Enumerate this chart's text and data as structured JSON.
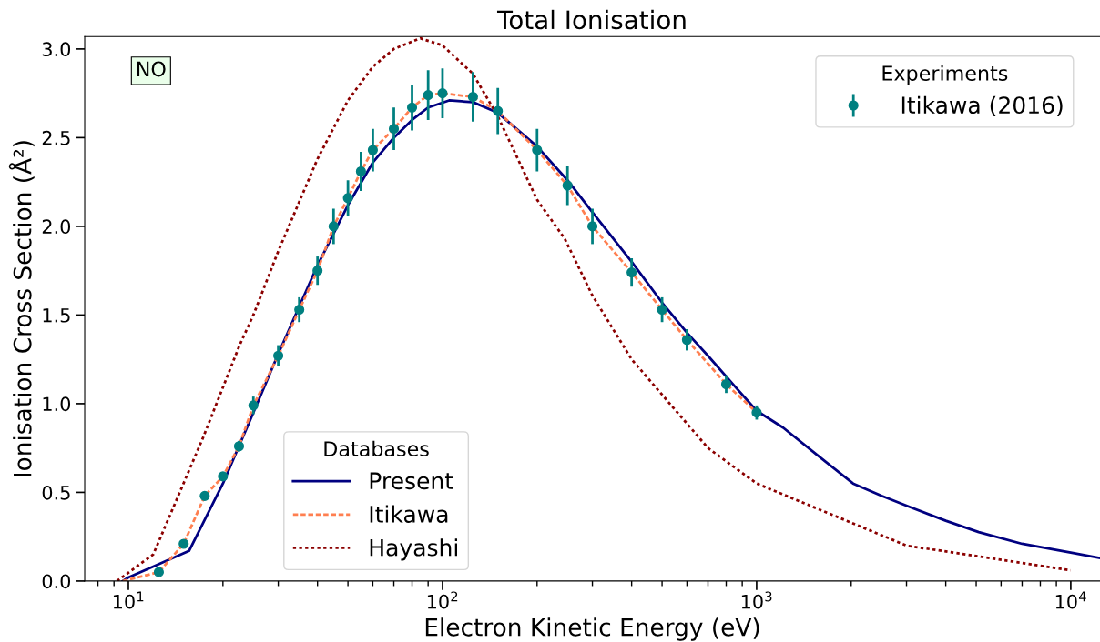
{
  "chart_data": {
    "type": "line",
    "title": "Total Ionisation",
    "xlabel": "Electron Kinetic Energy (eV)",
    "ylabel": "Ionisation Cross Section (Å²)",
    "log": "x",
    "xlim": [
      7.26,
      12390
    ],
    "xticks": [
      {
        "value": 10,
        "label": "10$^{1}$"
      },
      {
        "value": 100,
        "label": "10$^{2}$"
      },
      {
        "value": 1000,
        "label": "10$^{3}$"
      },
      {
        "value": 10000,
        "label": "10$^{4}$"
      }
    ],
    "ylim": [
      0,
      3.07
    ],
    "yticks": [
      {
        "value": 0,
        "label": "0.0"
      },
      {
        "value": 0.5,
        "label": "0.5"
      },
      {
        "value": 1,
        "label": "1.0"
      },
      {
        "value": 1.5,
        "label": "1.5"
      },
      {
        "value": 2,
        "label": "2.0"
      },
      {
        "value": 2.5,
        "label": "2.5"
      },
      {
        "value": 3,
        "label": "3.0"
      }
    ],
    "grid": false,
    "legend": [
      "bottom left",
      "top right"
    ],
    "legend_title": [
      "Databases",
      "Experiments"
    ],
    "annotations": [
      "NO"
    ],
    "series": [
      {
        "name": "Present",
        "color": "#000080",
        "line_style": "solid",
        "marker": "none",
        "x": [
          9.6,
          10,
          15.6,
          20,
          25,
          30,
          40,
          50,
          60,
          70,
          80,
          90,
          105,
          125,
          150,
          200,
          250,
          300,
          400,
          500,
          600,
          700,
          850,
          1000,
          1214,
          1585,
          2028,
          2500,
          3048,
          4000,
          5093,
          7000,
          10000,
          12390
        ],
        "values": [
          0,
          0.02,
          0.17,
          0.55,
          0.95,
          1.28,
          1.78,
          2.12,
          2.36,
          2.5,
          2.6,
          2.67,
          2.71,
          2.7,
          2.64,
          2.45,
          2.26,
          2.08,
          1.8,
          1.57,
          1.4,
          1.27,
          1.1,
          0.96,
          0.865,
          0.7,
          0.55,
          0.48,
          0.42,
          0.34,
          0.276,
          0.21,
          0.16,
          0.13
        ]
      },
      {
        "name": "Itikawa",
        "color": "#ff7f50",
        "line_style": "dashed",
        "marker": "none",
        "x": [
          9.6,
          12.5,
          15,
          17.5,
          20,
          22.5,
          25,
          30,
          35,
          40,
          45,
          50,
          55,
          60,
          70,
          80,
          90,
          100,
          125,
          150,
          200,
          250,
          300,
          400,
          500,
          600,
          800,
          1000
        ],
        "values": [
          0,
          0.05,
          0.21,
          0.48,
          0.59,
          0.76,
          0.99,
          1.27,
          1.53,
          1.75,
          2.0,
          2.16,
          2.31,
          2.43,
          2.55,
          2.67,
          2.74,
          2.75,
          2.73,
          2.65,
          2.43,
          2.23,
          2.0,
          1.74,
          1.53,
          1.36,
          1.11,
          0.95
        ]
      },
      {
        "name": "Hayashi",
        "color": "#8b0000",
        "line_style": "dotted",
        "marker": "none",
        "x": [
          9.2,
          12,
          17.3,
          22.6,
          25,
          30,
          40,
          50,
          60,
          70,
          85,
          100,
          125,
          150,
          200,
          245,
          300,
          400,
          700,
          1000,
          3000,
          10000
        ],
        "values": [
          0,
          0.15,
          0.81,
          1.33,
          1.5,
          1.86,
          2.38,
          2.71,
          2.9,
          3.0,
          3.06,
          3.02,
          2.86,
          2.62,
          2.15,
          1.93,
          1.61,
          1.25,
          0.75,
          0.55,
          0.2,
          0.06
        ]
      },
      {
        "name": "Itikawa (2016)",
        "type": "scatter",
        "color": "#008080",
        "marker": "circle",
        "x": [
          12.5,
          15,
          17.5,
          20,
          22.5,
          25,
          30,
          35,
          40,
          45,
          50,
          55,
          60,
          70,
          80,
          90,
          100,
          125,
          150,
          200,
          250,
          300,
          400,
          500,
          600,
          800,
          1000
        ],
        "values": [
          0.05,
          0.21,
          0.48,
          0.59,
          0.76,
          0.99,
          1.27,
          1.53,
          1.75,
          2.0,
          2.16,
          2.31,
          2.43,
          2.55,
          2.67,
          2.74,
          2.75,
          2.73,
          2.65,
          2.43,
          2.23,
          2.0,
          1.74,
          1.53,
          1.36,
          1.11,
          0.95
        ],
        "errors": [
          0.01,
          0.01,
          0.02,
          0.02,
          0.03,
          0.05,
          0.06,
          0.07,
          0.08,
          0.1,
          0.1,
          0.11,
          0.12,
          0.12,
          0.13,
          0.14,
          0.14,
          0.14,
          0.13,
          0.12,
          0.11,
          0.1,
          0.08,
          0.07,
          0.06,
          0.05,
          0.04
        ]
      }
    ]
  }
}
